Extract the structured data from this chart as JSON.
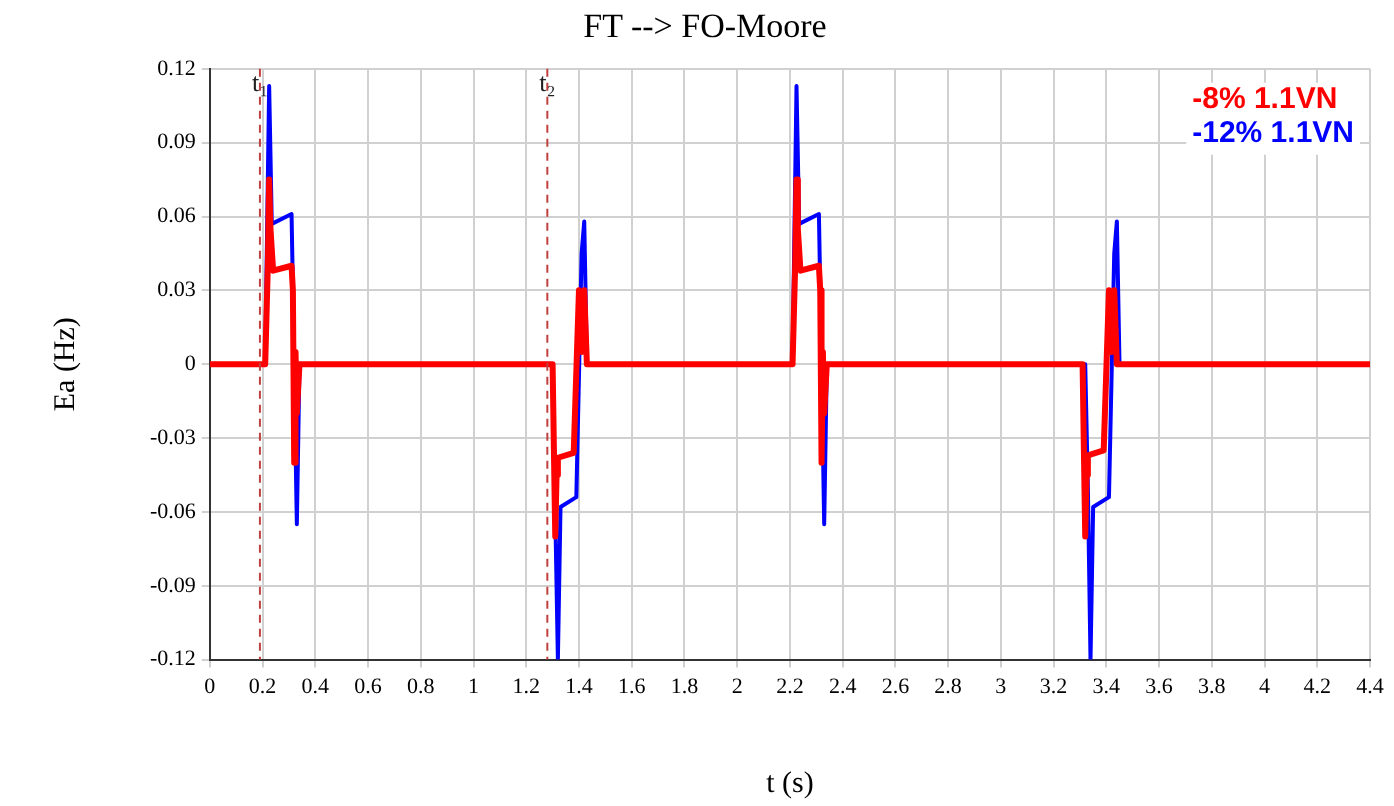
{
  "chart_data": {
    "type": "line",
    "title": "FT --> FO-Moore",
    "xlabel": "t (s)",
    "ylabel": "Ea (Hz)",
    "xlim": [
      0,
      4.4
    ],
    "xticks": [
      0,
      0.2,
      0.4,
      0.6,
      0.8,
      1,
      1.2,
      1.4,
      1.6,
      1.8,
      2,
      2.2,
      2.4,
      2.6,
      2.8,
      3,
      3.2,
      3.4,
      3.6,
      3.8,
      4,
      4.2,
      4.4
    ],
    "ylim": [
      -0.12,
      0.12
    ],
    "yticks": [
      -0.12,
      -0.09,
      -0.06,
      -0.03,
      0,
      0.03,
      0.06,
      0.09,
      0.12
    ],
    "grid": true,
    "legend": "top right",
    "marker": "none",
    "line_style": "solid",
    "ref_lines": [
      {
        "axis": "x",
        "value": 0.19,
        "label": "t₁",
        "color": "#c04040",
        "line_style": "dashed"
      },
      {
        "axis": "x",
        "value": 1.28,
        "label": "t₂",
        "color": "#c04040",
        "line_style": "dashed"
      }
    ],
    "series": [
      {
        "name": "-8% 1.1VN",
        "color": "#ff0000",
        "x": [
          0,
          0.21,
          0.22,
          0.225,
          0.23,
          0.24,
          0.31,
          0.315,
          0.32,
          0.325,
          0.33,
          0.34,
          1.3,
          1.31,
          1.315,
          1.32,
          1.38,
          1.4,
          1.41,
          1.42,
          1.43,
          2.2,
          2.21,
          2.22,
          2.225,
          2.23,
          2.24,
          2.31,
          2.315,
          2.32,
          2.325,
          2.33,
          2.34,
          3.31,
          3.32,
          3.325,
          3.33,
          3.39,
          3.41,
          3.42,
          3.43,
          3.44,
          4.4
        ],
        "values": [
          0,
          0,
          0.04,
          0.075,
          0.055,
          0.038,
          0.04,
          0.03,
          -0.04,
          0.005,
          -0.02,
          0,
          0,
          -0.07,
          -0.045,
          -0.038,
          -0.036,
          0.03,
          0.005,
          0.03,
          0,
          0,
          0,
          0.04,
          0.075,
          0.055,
          0.038,
          0.04,
          0.03,
          -0.04,
          0.005,
          -0.02,
          0,
          0,
          -0.07,
          -0.045,
          -0.037,
          -0.035,
          0.03,
          0.005,
          0.03,
          0,
          0
        ]
      },
      {
        "name": "-12% 1.1VN",
        "color": "#0000ff",
        "x": [
          0,
          0.21,
          0.225,
          0.235,
          0.31,
          0.32,
          0.33,
          0.34,
          1.3,
          1.32,
          1.33,
          1.39,
          1.41,
          1.42,
          1.43,
          2.21,
          2.225,
          2.235,
          2.31,
          2.32,
          2.33,
          2.34,
          3.32,
          3.33,
          3.34,
          3.35,
          3.41,
          3.43,
          3.44,
          3.45,
          4.4
        ],
        "values": [
          0,
          0,
          0.113,
          0.057,
          0.061,
          0,
          -0.065,
          0,
          0,
          -0.12,
          -0.058,
          -0.054,
          0.045,
          0.058,
          0,
          0,
          0.113,
          0.057,
          0.061,
          0,
          -0.065,
          0,
          0,
          -0.05,
          -0.12,
          -0.058,
          -0.054,
          0.045,
          0.058,
          0,
          0
        ]
      }
    ]
  }
}
